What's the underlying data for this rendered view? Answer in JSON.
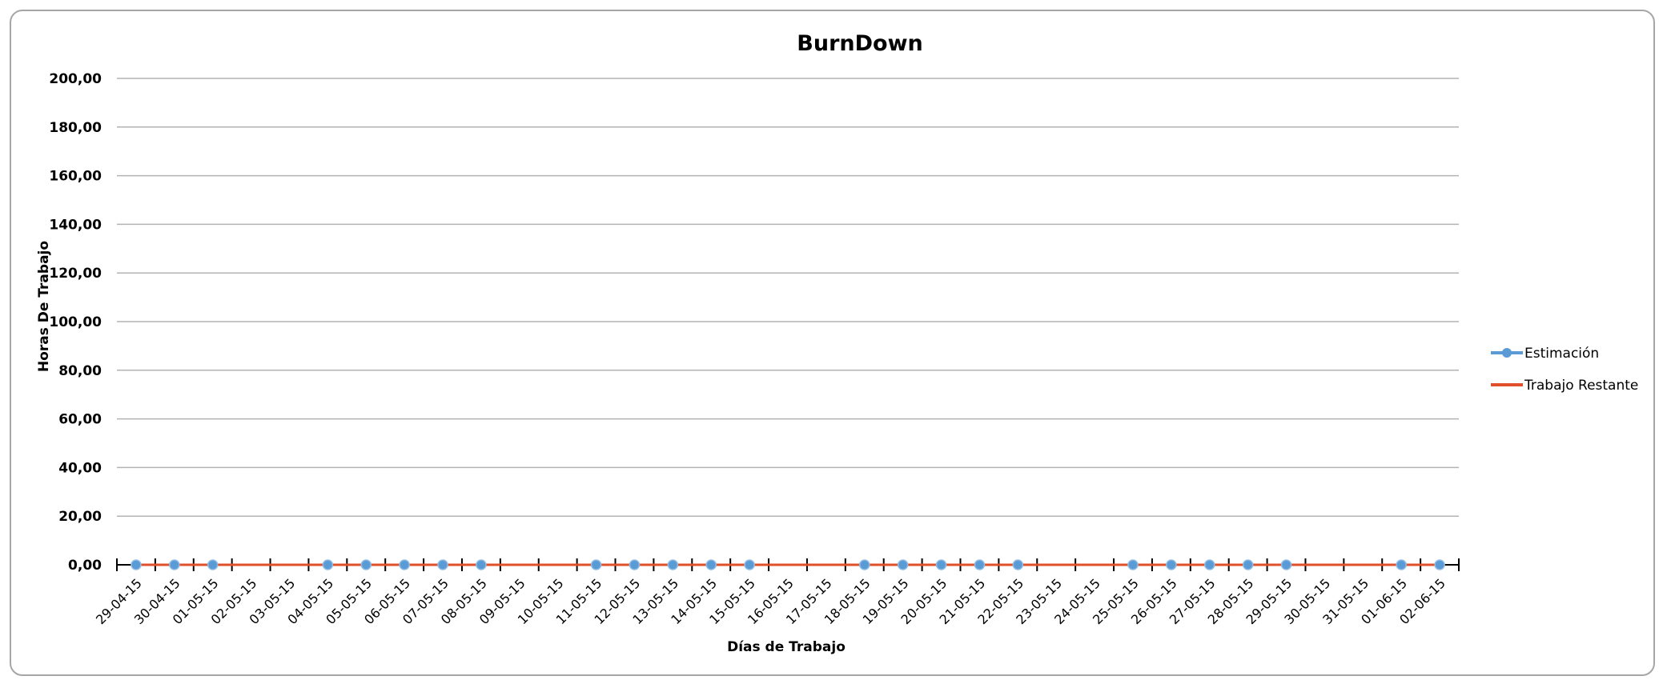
{
  "chart_data": {
    "type": "line",
    "title": "BurnDown",
    "xlabel": "Días de Trabajo",
    "ylabel": "Horas De Trabajo",
    "ylim": [
      0,
      200
    ],
    "yticks": [
      "0,00",
      "20,00",
      "40,00",
      "60,00",
      "80,00",
      "100,00",
      "120,00",
      "140,00",
      "160,00",
      "180,00",
      "200,00"
    ],
    "grid": true,
    "legend_position": "right",
    "categories": [
      "29-04-15",
      "30-04-15",
      "01-05-15",
      "02-05-15",
      "03-05-15",
      "04-05-15",
      "05-05-15",
      "06-05-15",
      "07-05-15",
      "08-05-15",
      "09-05-15",
      "10-05-15",
      "11-05-15",
      "12-05-15",
      "13-05-15",
      "14-05-15",
      "15-05-15",
      "16-05-15",
      "17-05-15",
      "18-05-15",
      "19-05-15",
      "20-05-15",
      "21-05-15",
      "22-05-15",
      "23-05-15",
      "24-05-15",
      "25-05-15",
      "26-05-15",
      "27-05-15",
      "28-05-15",
      "29-05-15",
      "30-05-15",
      "31-05-15",
      "01-06-15",
      "02-06-15"
    ],
    "series": [
      {
        "name": "Estimación",
        "color": "#5b9bd5",
        "marker": "circle",
        "values": [
          0,
          0,
          0,
          null,
          null,
          0,
          0,
          0,
          0,
          0,
          null,
          null,
          0,
          0,
          0,
          0,
          0,
          null,
          null,
          0,
          0,
          0,
          0,
          0,
          null,
          null,
          0,
          0,
          0,
          0,
          0,
          null,
          null,
          0,
          0
        ]
      },
      {
        "name": "Trabajo Restante",
        "color": "#e0502a",
        "marker": "none",
        "values": [
          0,
          0,
          0,
          0,
          0,
          0,
          0,
          0,
          0,
          0,
          0,
          0,
          0,
          0,
          0,
          0,
          0,
          0,
          0,
          0,
          0,
          0,
          0,
          0,
          0,
          0,
          0,
          0,
          0,
          0,
          0,
          0,
          0,
          0,
          0
        ]
      }
    ]
  }
}
